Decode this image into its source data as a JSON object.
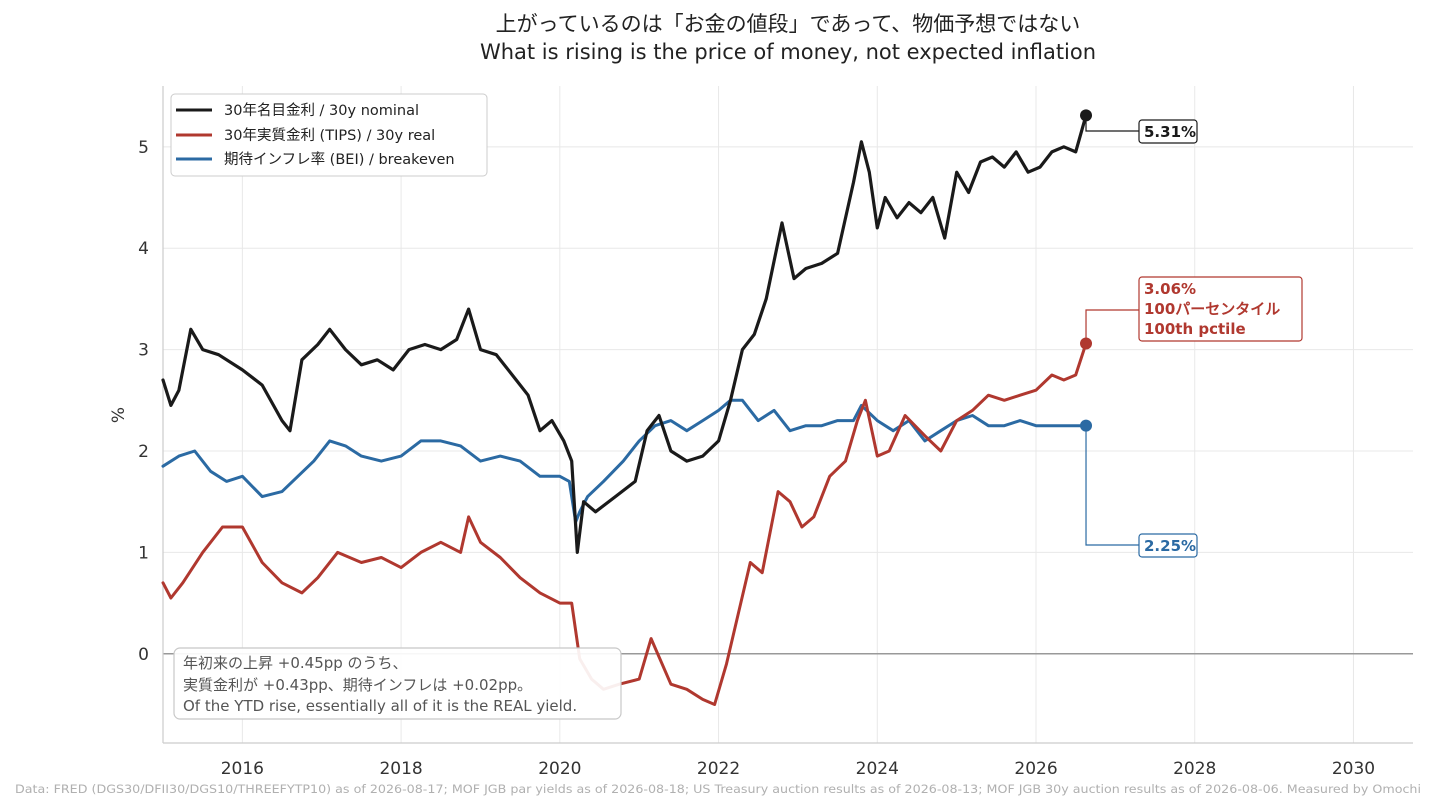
{
  "colors": {
    "nominal": "#1a1a1a",
    "real": "#b0382f",
    "breakeven": "#2b6aa3",
    "grid": "#e8e8e8",
    "zero_line": "#999999",
    "axis": "#cccccc"
  },
  "chart_data": {
    "type": "line",
    "title_ja": "上がっているのは「お金の値段」であって、物価予想ではない",
    "title_en": "What is rising is the price of money, not expected inflation",
    "ylabel": "%",
    "xlabel": "",
    "xlim": [
      2015.0,
      2030.75
    ],
    "ylim": [
      -0.88,
      5.6
    ],
    "x_ticks": [
      2016,
      2018,
      2020,
      2022,
      2024,
      2026,
      2028,
      2030
    ],
    "y_ticks": [
      0,
      1,
      2,
      3,
      4,
      5
    ],
    "grid": true,
    "legend_position": "top-left",
    "series": [
      {
        "name": "30年名目金利 / 30y nominal",
        "key": "nominal",
        "x": [
          2015.0,
          2015.1,
          2015.2,
          2015.35,
          2015.5,
          2015.7,
          2016.0,
          2016.25,
          2016.5,
          2016.6,
          2016.75,
          2016.95,
          2017.1,
          2017.3,
          2017.5,
          2017.7,
          2017.9,
          2018.1,
          2018.3,
          2018.5,
          2018.7,
          2018.85,
          2019.0,
          2019.2,
          2019.45,
          2019.6,
          2019.75,
          2019.9,
          2020.05,
          2020.15,
          2020.22,
          2020.3,
          2020.45,
          2020.7,
          2020.95,
          2021.1,
          2021.25,
          2021.4,
          2021.6,
          2021.8,
          2022.0,
          2022.15,
          2022.3,
          2022.45,
          2022.6,
          2022.8,
          2022.95,
          2023.1,
          2023.3,
          2023.5,
          2023.7,
          2023.8,
          2023.9,
          2024.0,
          2024.1,
          2024.25,
          2024.4,
          2024.55,
          2024.7,
          2024.85,
          2025.0,
          2025.15,
          2025.3,
          2025.45,
          2025.6,
          2025.75,
          2025.9,
          2026.05,
          2026.2,
          2026.35,
          2026.5,
          2026.63
        ],
        "y": [
          2.7,
          2.45,
          2.6,
          3.2,
          3.0,
          2.95,
          2.8,
          2.65,
          2.3,
          2.2,
          2.9,
          3.05,
          3.2,
          3.0,
          2.85,
          2.9,
          2.8,
          3.0,
          3.05,
          3.0,
          3.1,
          3.4,
          3.0,
          2.95,
          2.7,
          2.55,
          2.2,
          2.3,
          2.1,
          1.9,
          1.0,
          1.5,
          1.4,
          1.55,
          1.7,
          2.2,
          2.35,
          2.0,
          1.9,
          1.95,
          2.1,
          2.5,
          3.0,
          3.15,
          3.5,
          4.25,
          3.7,
          3.8,
          3.85,
          3.95,
          4.65,
          5.05,
          4.75,
          4.2,
          4.5,
          4.3,
          4.45,
          4.35,
          4.5,
          4.1,
          4.75,
          4.55,
          4.85,
          4.9,
          4.8,
          4.95,
          4.75,
          4.8,
          4.95,
          5.0,
          4.95,
          5.31
        ]
      },
      {
        "name": "30年実質金利 (TIPS) / 30y real",
        "key": "real",
        "x": [
          2015.0,
          2015.1,
          2015.25,
          2015.5,
          2015.75,
          2016.0,
          2016.25,
          2016.5,
          2016.75,
          2016.95,
          2017.2,
          2017.5,
          2017.75,
          2018.0,
          2018.25,
          2018.5,
          2018.75,
          2018.85,
          2019.0,
          2019.25,
          2019.5,
          2019.75,
          2020.0,
          2020.15,
          2020.25,
          2020.4,
          2020.55,
          2020.75,
          2021.0,
          2021.15,
          2021.4,
          2021.6,
          2021.8,
          2021.95,
          2022.1,
          2022.25,
          2022.4,
          2022.55,
          2022.75,
          2022.9,
          2023.05,
          2023.2,
          2023.4,
          2023.6,
          2023.75,
          2023.85,
          2024.0,
          2024.15,
          2024.35,
          2024.6,
          2024.8,
          2025.0,
          2025.2,
          2025.4,
          2025.6,
          2025.8,
          2026.0,
          2026.2,
          2026.35,
          2026.5,
          2026.63
        ],
        "y": [
          0.7,
          0.55,
          0.7,
          1.0,
          1.25,
          1.25,
          0.9,
          0.7,
          0.6,
          0.75,
          1.0,
          0.9,
          0.95,
          0.85,
          1.0,
          1.1,
          1.0,
          1.35,
          1.1,
          0.95,
          0.75,
          0.6,
          0.5,
          0.5,
          -0.05,
          -0.25,
          -0.35,
          -0.3,
          -0.25,
          0.15,
          -0.3,
          -0.35,
          -0.45,
          -0.5,
          -0.1,
          0.4,
          0.9,
          0.8,
          1.6,
          1.5,
          1.25,
          1.35,
          1.75,
          1.9,
          2.3,
          2.5,
          1.95,
          2.0,
          2.35,
          2.15,
          2.0,
          2.3,
          2.4,
          2.55,
          2.5,
          2.55,
          2.6,
          2.75,
          2.7,
          2.75,
          3.06
        ]
      },
      {
        "name": "期待インフレ率 (BEI) / breakeven",
        "key": "breakeven",
        "x": [
          2015.0,
          2015.2,
          2015.4,
          2015.6,
          2015.8,
          2016.0,
          2016.25,
          2016.5,
          2016.7,
          2016.9,
          2017.1,
          2017.3,
          2017.5,
          2017.75,
          2018.0,
          2018.25,
          2018.5,
          2018.75,
          2019.0,
          2019.25,
          2019.5,
          2019.75,
          2020.0,
          2020.12,
          2020.2,
          2020.25,
          2020.35,
          2020.55,
          2020.8,
          2021.0,
          2021.2,
          2021.4,
          2021.6,
          2021.8,
          2022.0,
          2022.15,
          2022.3,
          2022.5,
          2022.7,
          2022.9,
          2023.1,
          2023.3,
          2023.5,
          2023.7,
          2023.8,
          2024.0,
          2024.2,
          2024.4,
          2024.6,
          2024.8,
          2025.0,
          2025.2,
          2025.4,
          2025.6,
          2025.8,
          2026.0,
          2026.2,
          2026.35,
          2026.5,
          2026.63
        ],
        "y": [
          1.85,
          1.95,
          2.0,
          1.8,
          1.7,
          1.75,
          1.55,
          1.6,
          1.75,
          1.9,
          2.1,
          2.05,
          1.95,
          1.9,
          1.95,
          2.1,
          2.1,
          2.05,
          1.9,
          1.95,
          1.9,
          1.75,
          1.75,
          1.7,
          1.3,
          1.4,
          1.55,
          1.7,
          1.9,
          2.1,
          2.25,
          2.3,
          2.2,
          2.3,
          2.4,
          2.5,
          2.5,
          2.3,
          2.4,
          2.2,
          2.25,
          2.25,
          2.3,
          2.3,
          2.45,
          2.3,
          2.2,
          2.3,
          2.1,
          2.2,
          2.3,
          2.35,
          2.25,
          2.25,
          2.3,
          2.25,
          2.25,
          2.25,
          2.25,
          2.25
        ]
      }
    ],
    "end_labels": {
      "nominal": [
        "5.31%"
      ],
      "real": [
        "3.06%",
        "100パーセンタイル",
        "100th pctile"
      ],
      "breakeven": [
        "2.25%"
      ]
    },
    "annotation": [
      "年初来の上昇 +0.45pp のうち、",
      "実質金利が +0.43pp、期待インフレは +0.02pp。",
      "Of the YTD rise, essentially all of it is the REAL yield."
    ],
    "source": "Data: FRED (DGS30/DFII30/DGS10/THREEFYTP10) as of 2026-08-17; MOF JGB par yields as of 2026-08-18; US Treasury auction results as of 2026-08-13; MOF JGB 30y auction results as of 2026-08-06. Measured by Omochi"
  }
}
